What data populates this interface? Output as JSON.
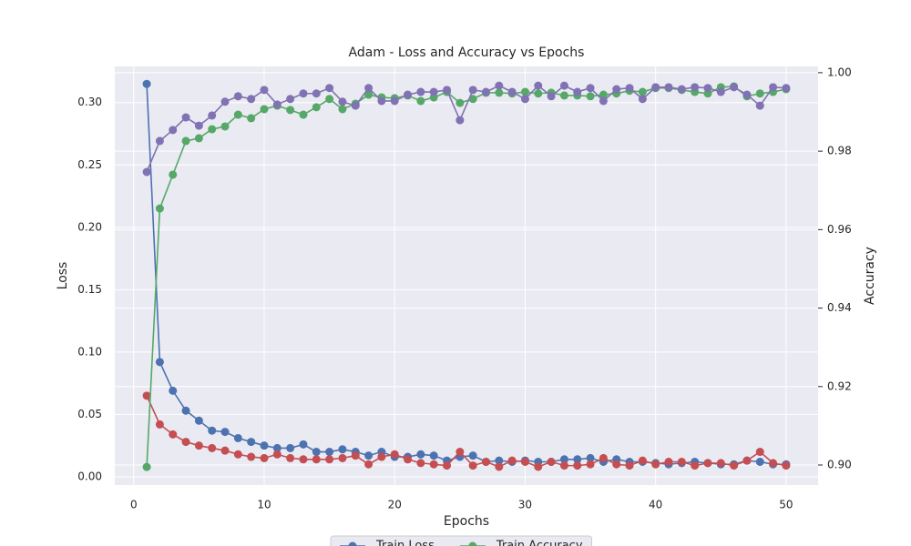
{
  "chart_data": {
    "type": "line",
    "title": "Adam - Loss and Accuracy vs Epochs",
    "x_label": "Epochs",
    "y_label": "Loss",
    "y2_label": "Accuracy",
    "x": [
      1,
      2,
      3,
      4,
      5,
      6,
      7,
      8,
      9,
      10,
      11,
      12,
      13,
      14,
      15,
      16,
      17,
      18,
      19,
      20,
      21,
      22,
      23,
      24,
      25,
      26,
      27,
      28,
      29,
      30,
      31,
      32,
      33,
      34,
      35,
      36,
      37,
      38,
      39,
      40,
      41,
      42,
      43,
      44,
      45,
      46,
      47,
      48,
      49,
      50
    ],
    "xlim": [
      -1.45,
      52.45
    ],
    "xticks": [
      0,
      10,
      20,
      30,
      40,
      50
    ],
    "ylim": [
      -0.0066,
      0.329
    ],
    "yticks": [
      {
        "value": 0,
        "label": "0.00"
      },
      0.05,
      {
        "value": 0.1,
        "label": "0.10"
      },
      0.15,
      {
        "value": 0.2,
        "label": "0.20"
      },
      0.25,
      {
        "value": 0.3,
        "label": "0.30"
      }
    ],
    "y2lim": [
      0.8949,
      1.0016
    ],
    "y2ticks": [
      {
        "value": 0.9,
        "label": "0.90"
      },
      {
        "value": 0.92,
        "label": "0.92"
      },
      {
        "value": 0.94,
        "label": "0.94"
      },
      {
        "value": 0.96,
        "label": "0.96"
      },
      {
        "value": 0.98,
        "label": "0.98"
      },
      {
        "value": 1,
        "label": "1.00"
      }
    ],
    "grid": true,
    "legend": "bottom",
    "series": [
      {
        "name": "Train Loss",
        "color": "#4c72b0",
        "values": [
          0.315,
          0.092,
          0.069,
          0.053,
          0.045,
          0.037,
          0.036,
          0.031,
          0.028,
          0.025,
          0.023,
          0.023,
          0.026,
          0.02,
          0.02,
          0.022,
          0.02,
          0.017,
          0.02,
          0.016,
          0.016,
          0.018,
          0.017,
          0.013,
          0.016,
          0.017,
          0.012,
          0.013,
          0.012,
          0.013,
          0.012,
          0.012,
          0.014,
          0.014,
          0.015,
          0.012,
          0.014,
          0.012,
          0.012,
          0.011,
          0.01,
          0.011,
          0.012,
          0.011,
          0.01,
          0.01,
          0.013,
          0.012,
          0.01,
          0.01
        ]
      },
      {
        "color": "#c44e52",
        "values": [
          0.065,
          0.042,
          0.034,
          0.028,
          0.025,
          0.023,
          0.021,
          0.018,
          0.016,
          0.015,
          0.018,
          0.015,
          0.014,
          0.014,
          0.014,
          0.015,
          0.017,
          0.01,
          0.016,
          0.018,
          0.014,
          0.011,
          0.01,
          0.009,
          0.02,
          0.009,
          0.012,
          0.008,
          0.013,
          0.012,
          0.008,
          0.012,
          0.009,
          0.009,
          0.01,
          0.015,
          0.01,
          0.009,
          0.013,
          0.01,
          0.012,
          0.012,
          0.009,
          0.011,
          0.011,
          0.009,
          0.013,
          0.02,
          0.011,
          0.009
        ]
      },
      {
        "name": "Train Accuracy",
        "color": "#55a868",
        "axis": "y2",
        "values": [
          0.8995,
          0.9654,
          0.974,
          0.9826,
          0.9833,
          0.9856,
          0.9863,
          0.9893,
          0.9884,
          0.9907,
          0.9916,
          0.9905,
          0.9893,
          0.9912,
          0.9933,
          0.9907,
          0.9921,
          0.9944,
          0.9937,
          0.9935,
          0.9942,
          0.9928,
          0.9937,
          0.9951,
          0.9923,
          0.9933,
          0.9949,
          0.9949,
          0.9947,
          0.9951,
          0.9947,
          0.9949,
          0.9942,
          0.9942,
          0.994,
          0.9944,
          0.9947,
          0.9954,
          0.9951,
          0.9961,
          0.9961,
          0.9956,
          0.9951,
          0.9947,
          0.9963,
          0.9965,
          0.994,
          0.9947,
          0.9951,
          0.9958
        ]
      },
      {
        "color": "#8172b3",
        "axis": "y2",
        "values": [
          0.9747,
          0.9826,
          0.9854,
          0.9886,
          0.9865,
          0.9891,
          0.9926,
          0.994,
          0.9933,
          0.9956,
          0.9919,
          0.9933,
          0.9947,
          0.9947,
          0.9961,
          0.9926,
          0.9916,
          0.9961,
          0.9928,
          0.9928,
          0.9944,
          0.9951,
          0.9951,
          0.9956,
          0.9879,
          0.9956,
          0.9951,
          0.9967,
          0.9951,
          0.9933,
          0.9967,
          0.994,
          0.9967,
          0.9951,
          0.9961,
          0.9928,
          0.9958,
          0.9961,
          0.9933,
          0.9963,
          0.9963,
          0.9958,
          0.9963,
          0.9961,
          0.9951,
          0.9963,
          0.9944,
          0.9916,
          0.9963,
          0.9961
        ]
      }
    ]
  }
}
